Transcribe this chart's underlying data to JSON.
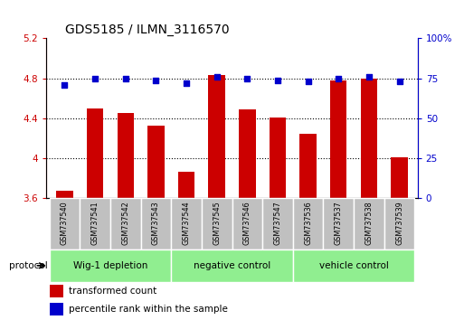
{
  "title": "GDS5185 / ILMN_3116570",
  "samples": [
    "GSM737540",
    "GSM737541",
    "GSM737542",
    "GSM737543",
    "GSM737544",
    "GSM737545",
    "GSM737546",
    "GSM737547",
    "GSM737536",
    "GSM737537",
    "GSM737538",
    "GSM737539"
  ],
  "red_values": [
    3.68,
    4.5,
    4.45,
    4.33,
    3.87,
    4.83,
    4.49,
    4.41,
    4.25,
    4.78,
    4.8,
    4.01
  ],
  "blue_values": [
    71,
    75,
    75,
    74,
    72,
    76,
    75,
    74,
    73,
    75,
    76,
    73
  ],
  "groups": [
    {
      "label": "Wig-1 depletion",
      "start": 0,
      "end": 3
    },
    {
      "label": "negative control",
      "start": 4,
      "end": 7
    },
    {
      "label": "vehicle control",
      "start": 8,
      "end": 11
    }
  ],
  "ylim_left": [
    3.6,
    5.2
  ],
  "ylim_right": [
    0,
    100
  ],
  "yticks_left": [
    3.6,
    4.0,
    4.4,
    4.8,
    5.2
  ],
  "yticks_right": [
    0,
    25,
    50,
    75,
    100
  ],
  "ytick_labels_left": [
    "3.6",
    "4",
    "4.4",
    "4.8",
    "5.2"
  ],
  "ytick_labels_right": [
    "0",
    "25",
    "50",
    "75",
    "100%"
  ],
  "bar_color": "#CC0000",
  "dot_color": "#0000CC",
  "group_bg": "#c0c0c0",
  "green_color": "#90EE90",
  "legend_red": "transformed count",
  "legend_blue": "percentile rank within the sample",
  "protocol_label": "protocol",
  "gridline_vals": [
    4.0,
    4.4,
    4.8
  ]
}
